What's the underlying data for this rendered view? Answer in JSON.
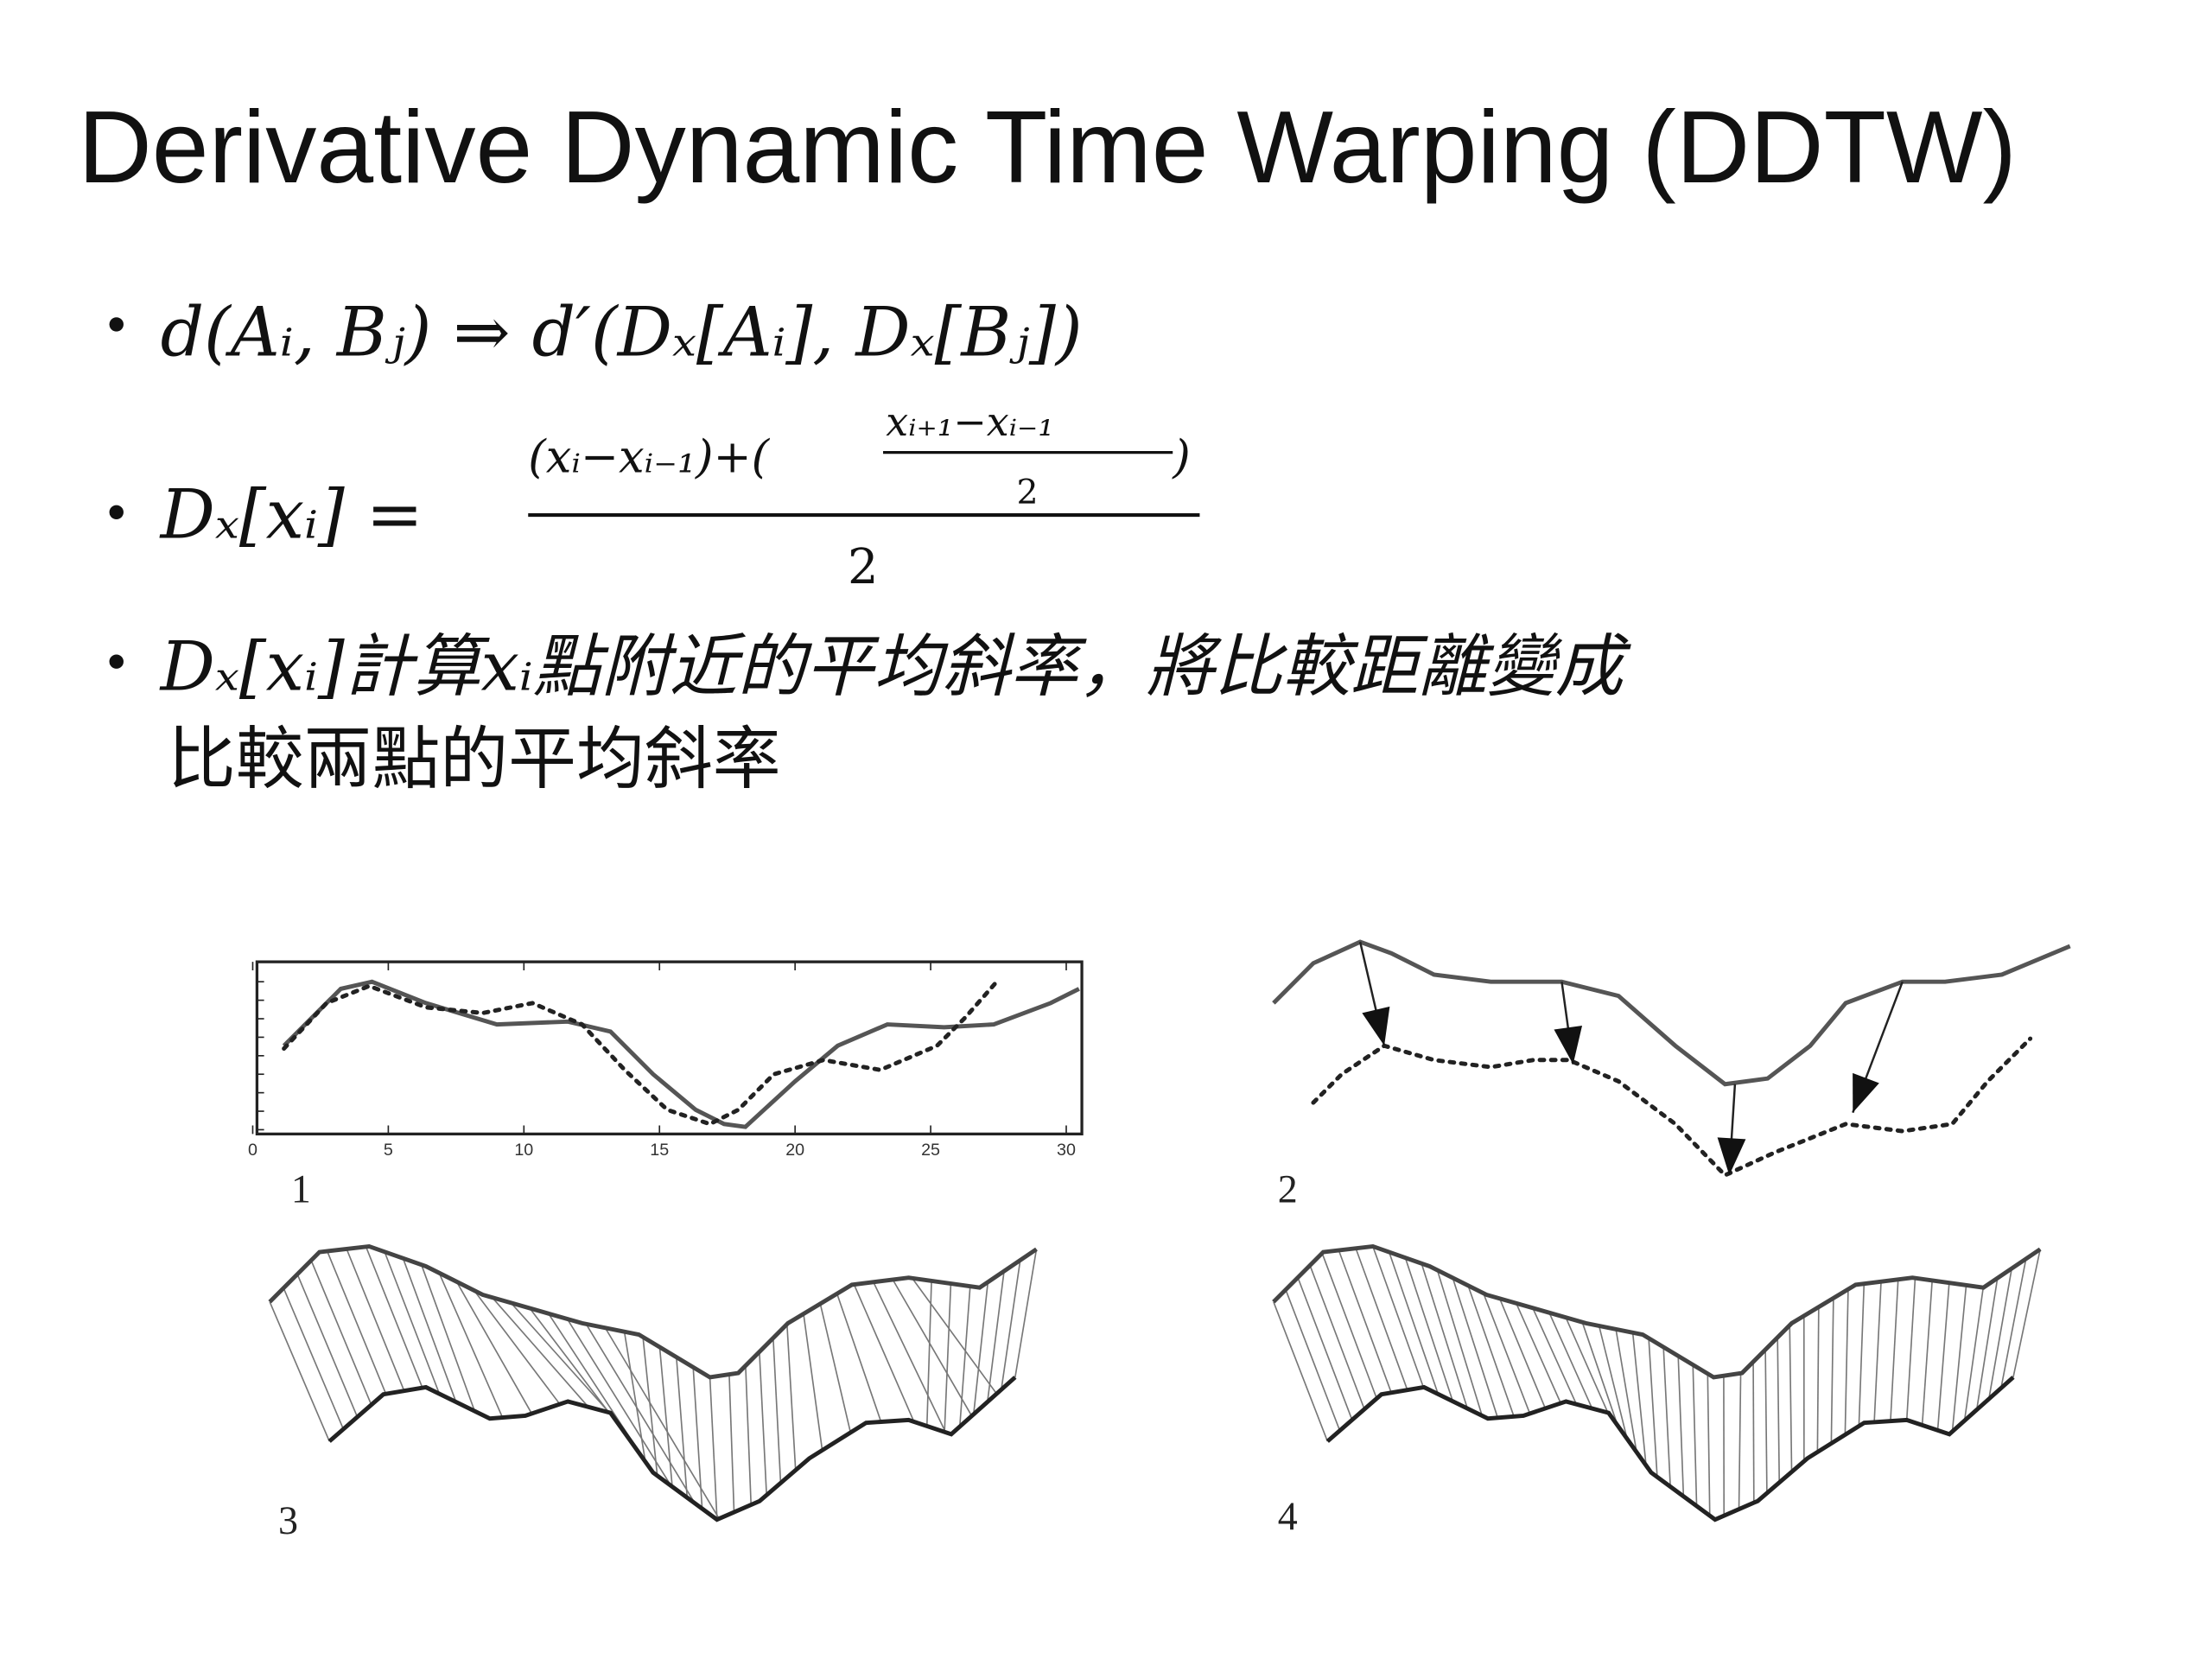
{
  "title": "Derivative Dynamic Time Warping (DDTW)",
  "bullet1": "d(Aᵢ, Bⱼ) ⇒ d′(Dₓ[Aᵢ], Dₓ[Bⱼ])",
  "bullet2": {
    "lhs": "Dₓ[xᵢ] =",
    "numerator_left": "(xᵢ−xᵢ₋₁)+(",
    "inner_numerator": "xᵢ₊₁−xᵢ₋₁",
    "inner_denominator": "2",
    "numerator_right": ")",
    "denominator": "2"
  },
  "bullet3": {
    "lines": [
      "Dₓ[xᵢ]計算xᵢ點附近的平均斜率，將比較距離變成",
      "比較兩點的平均斜率"
    ]
  },
  "figures": [
    {
      "label": "1",
      "xticks": [
        "0",
        "5",
        "10",
        "15",
        "20",
        "25",
        "30"
      ]
    },
    {
      "label": "2"
    },
    {
      "label": "3"
    },
    {
      "label": "4"
    }
  ]
}
